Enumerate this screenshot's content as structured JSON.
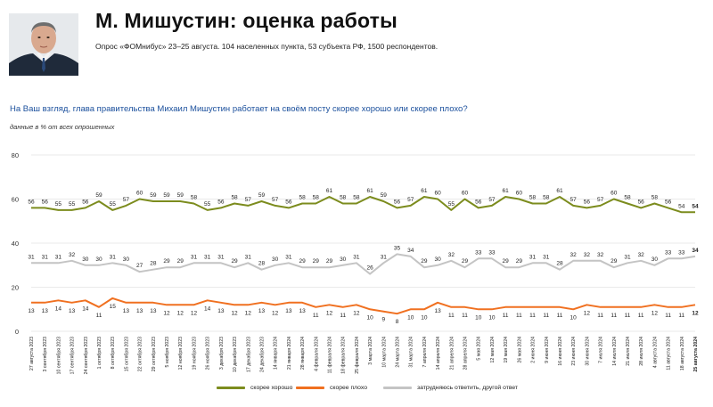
{
  "header": {
    "title": "М. Мишустин: оценка работы",
    "subtitle": "Опрос «ФОМнибус» 23–25 августа. 104 населенных пункта, 53 субъекта РФ, 1500 респондентов.",
    "question": "На Ваш взгляд, глава правительства Михаил Мишустин работает на своём посту скорее хорошо или скорее плохо?",
    "unit_note": "данные в % от всех опрошенных"
  },
  "colors": {
    "good": "#7c8c1e",
    "bad": "#f07020",
    "other": "#c4c4c4",
    "grid": "#e3e3e3"
  },
  "chart_data": {
    "type": "line",
    "ylim": [
      0,
      80
    ],
    "yticks": [
      0,
      20,
      40,
      60,
      80
    ],
    "grid": true,
    "legend_position": "bottom",
    "x": [
      "27 августа 2023",
      "3 сентября 2023",
      "10 сентября 2023",
      "17 сентября 2023",
      "24 сентября 2023",
      "1 октября 2023",
      "8 октября 2023",
      "15 октября 2023",
      "22 октября 2023",
      "29 октября 2023",
      "5 ноября 2023",
      "12 ноября 2023",
      "19 ноября 2023",
      "26 ноября 2023",
      "3 декабря 2023",
      "10 декабря 2023",
      "17 декабря 2023",
      "24 декабря 2023",
      "14 января 2024",
      "21 января 2024",
      "28 января 2024",
      "4 февраля 2024",
      "11 февраля 2024",
      "18 февраля 2024",
      "25 февраля 2024",
      "3 марта 2024",
      "10 марта 2024",
      "24 марта 2024",
      "31 марта 2024",
      "7 апреля 2024",
      "14 апреля 2024",
      "21 апреля 2024",
      "28 апреля 2024",
      "5 мая 2024",
      "12 мая 2024",
      "19 мая 2024",
      "26 мая 2024",
      "2 июня 2024",
      "9 июня 2024",
      "16 июня 2024",
      "23 июня 2024",
      "30 июня 2024",
      "7 июля 2024",
      "14 июля 2024",
      "21 июля 2024",
      "28 июля 2024",
      "4 августа 2024",
      "11 августа 2024",
      "18 августа 2024",
      "25 августа 2024"
    ],
    "series": [
      {
        "name": "скорее хорошо",
        "color": "#7c8c1e",
        "values": [
          56,
          56,
          55,
          55,
          56,
          59,
          55,
          57,
          60,
          59,
          59,
          59,
          58,
          55,
          56,
          58,
          57,
          59,
          57,
          56,
          58,
          58,
          61,
          58,
          58,
          61,
          59,
          56,
          57,
          61,
          60,
          55,
          60,
          56,
          57,
          61,
          60,
          58,
          58,
          61,
          57,
          56,
          57,
          60,
          58,
          56,
          58,
          56,
          54,
          54
        ]
      },
      {
        "name": "скорее плохо",
        "color": "#f07020",
        "values": [
          13,
          13,
          14,
          13,
          14,
          11,
          15,
          13,
          13,
          13,
          12,
          12,
          12,
          14,
          13,
          12,
          12,
          13,
          12,
          13,
          13,
          11,
          12,
          11,
          12,
          10,
          9,
          8,
          10,
          10,
          13,
          11,
          11,
          10,
          10,
          11,
          11,
          11,
          11,
          11,
          10,
          12,
          11,
          11,
          11,
          11,
          12,
          11,
          11,
          12
        ]
      },
      {
        "name": "затрудняюсь ответить, другой ответ",
        "color": "#c4c4c4",
        "values": [
          31,
          31,
          31,
          32,
          30,
          30,
          31,
          30,
          27,
          28,
          29,
          29,
          31,
          31,
          31,
          29,
          31,
          28,
          30,
          31,
          29,
          29,
          29,
          30,
          31,
          26,
          31,
          35,
          34,
          29,
          30,
          32,
          29,
          33,
          33,
          29,
          29,
          31,
          31,
          28,
          32,
          32,
          32,
          29,
          31,
          32,
          30,
          33,
          33,
          34
        ]
      }
    ]
  }
}
